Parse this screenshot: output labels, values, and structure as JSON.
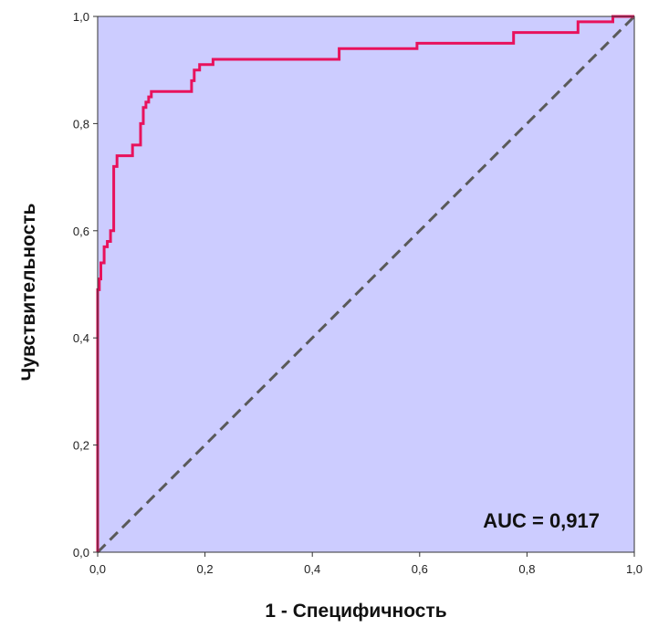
{
  "chart_data": {
    "type": "line",
    "xlabel": "1 - Специфичность",
    "ylabel": "Чувствительность",
    "xlim": [
      0,
      1
    ],
    "ylim": [
      0,
      1
    ],
    "x_ticks": [
      "0,0",
      "0,2",
      "0,4",
      "0,6",
      "0,8",
      "1,0"
    ],
    "y_ticks": [
      "0,0",
      "0,2",
      "0,4",
      "0,6",
      "0,8",
      "1,0"
    ],
    "annotation": "AUC = 0,917",
    "grid": false,
    "colors": {
      "plot_background": "#ccccff",
      "roc_curve": "#e8125c",
      "reference_line": "#5a5a5a"
    },
    "series": [
      {
        "kind": "roc-curve",
        "x": [
          0.0,
          0.0,
          0.003,
          0.003,
          0.006,
          0.006,
          0.012,
          0.012,
          0.018,
          0.018,
          0.024,
          0.024,
          0.03,
          0.03,
          0.036,
          0.036,
          0.065,
          0.065,
          0.08,
          0.08,
          0.085,
          0.085,
          0.09,
          0.09,
          0.095,
          0.095,
          0.1,
          0.1,
          0.175,
          0.175,
          0.18,
          0.18,
          0.19,
          0.19,
          0.215,
          0.215,
          0.45,
          0.45,
          0.595,
          0.595,
          0.775,
          0.775,
          0.895,
          0.895,
          0.96,
          0.96,
          1.0
        ],
        "y": [
          0.0,
          0.49,
          0.49,
          0.51,
          0.51,
          0.54,
          0.54,
          0.57,
          0.57,
          0.58,
          0.58,
          0.6,
          0.6,
          0.72,
          0.72,
          0.74,
          0.74,
          0.76,
          0.76,
          0.8,
          0.8,
          0.83,
          0.83,
          0.84,
          0.84,
          0.85,
          0.85,
          0.86,
          0.86,
          0.88,
          0.88,
          0.9,
          0.9,
          0.91,
          0.91,
          0.92,
          0.92,
          0.94,
          0.94,
          0.95,
          0.95,
          0.97,
          0.97,
          0.99,
          0.99,
          1.0,
          1.0
        ]
      },
      {
        "kind": "reference-diagonal",
        "x": [
          0,
          1
        ],
        "y": [
          0,
          1
        ]
      }
    ]
  }
}
